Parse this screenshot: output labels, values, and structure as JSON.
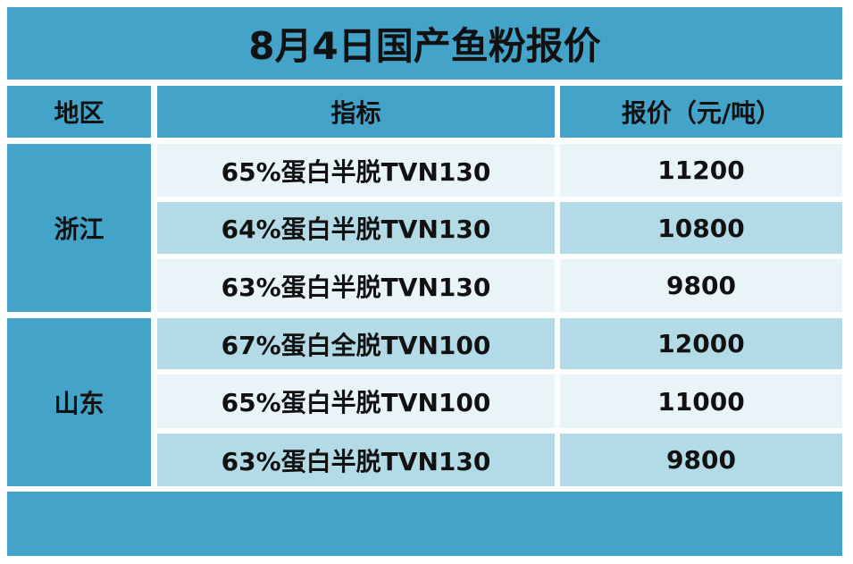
{
  "title": "8月4日国产鱼粉报价",
  "headers": {
    "region": "地区",
    "indicator": "指标",
    "price": "报价（元/吨）"
  },
  "groups": [
    {
      "region": "浙江",
      "rows": [
        {
          "indicator": "65%蛋白半脱TVN130",
          "price": "11200"
        },
        {
          "indicator": "64%蛋白半脱TVN130",
          "price": "10800"
        },
        {
          "indicator": "63%蛋白半脱TVN130",
          "price": "9800"
        }
      ]
    },
    {
      "region": "山东",
      "rows": [
        {
          "indicator": "67%蛋白全脱TVN100",
          "price": "12000"
        },
        {
          "indicator": "65%蛋白半脱TVN100",
          "price": "11000"
        },
        {
          "indicator": "63%蛋白半脱TVN130",
          "price": "9800"
        }
      ]
    }
  ],
  "colors": {
    "header_bg": "#44a3c8",
    "row_light": "#e8f4f8",
    "row_mid": "#b2dbe7"
  }
}
